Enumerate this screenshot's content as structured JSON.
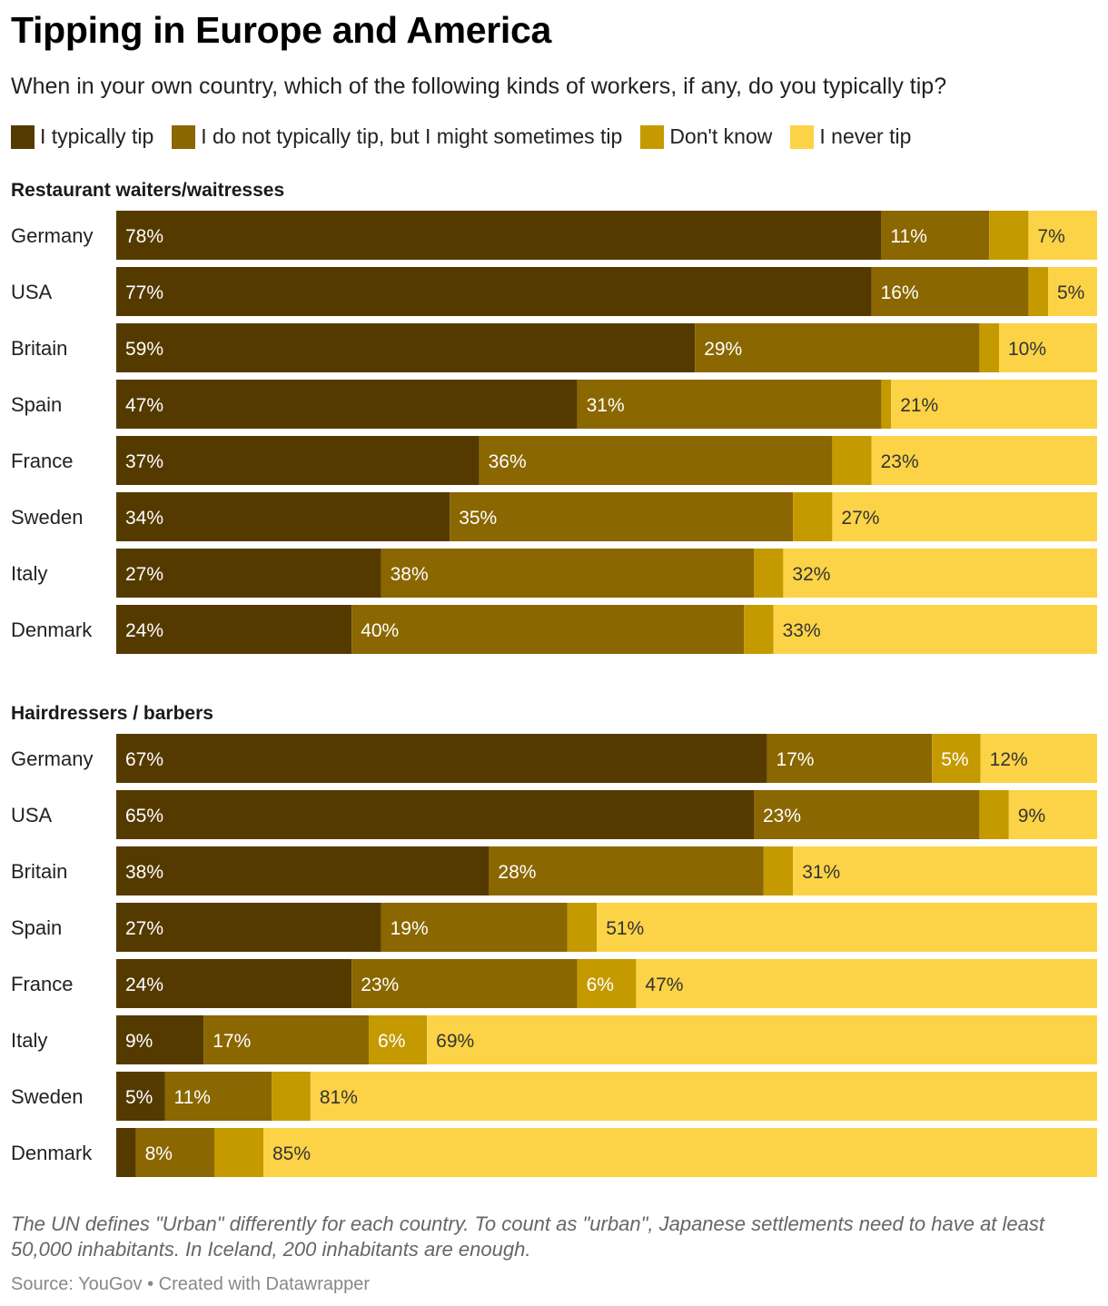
{
  "title": "Tipping in Europe and America",
  "subtitle": "When in your own country, which of the following kinds of workers, if any, do you typically tip?",
  "notes": "The UN defines \"Urban\" differently for each country. To count as \"urban\", Japanese settlements need to have at least 50,000 inhabitants. In Iceland, 200 inhabitants are enough.",
  "source": "Source: YouGov • Created with Datawrapper",
  "colors": {
    "typically_tip": "#553a00",
    "sometimes_tip": "#8a6700",
    "dont_know": "#c49a00",
    "never_tip": "#fcd347"
  },
  "chart_data": {
    "type": "bar",
    "orientation": "horizontal",
    "stacked": true,
    "xlim": [
      0,
      100
    ],
    "legend": [
      "I typically tip",
      "I do not typically tip, but I might sometimes tip",
      "Don't know",
      "I never tip"
    ],
    "panels": [
      {
        "title": "Restaurant waiters/waitresses",
        "categories": [
          "Germany",
          "USA",
          "Britain",
          "Spain",
          "France",
          "Sweden",
          "Italy",
          "Denmark"
        ],
        "series": [
          {
            "name": "I typically tip",
            "values": [
              78,
              77,
              59,
              47,
              37,
              34,
              27,
              24
            ]
          },
          {
            "name": "I do not typically tip, but I might sometimes tip",
            "values": [
              11,
              16,
              29,
              31,
              36,
              35,
              38,
              40
            ]
          },
          {
            "name": "Don't know",
            "values": [
              4,
              2,
              2,
              1,
              4,
              4,
              3,
              3
            ]
          },
          {
            "name": "I never tip",
            "values": [
              7,
              5,
              10,
              21,
              23,
              27,
              32,
              33
            ]
          }
        ],
        "labels": [
          [
            "78%",
            "11%",
            "",
            "7%"
          ],
          [
            "77%",
            "16%",
            "",
            "5%"
          ],
          [
            "59%",
            "29%",
            "",
            "10%"
          ],
          [
            "47%",
            "31%",
            "",
            "21%"
          ],
          [
            "37%",
            "36%",
            "",
            "23%"
          ],
          [
            "34%",
            "35%",
            "",
            "27%"
          ],
          [
            "27%",
            "38%",
            "",
            "32%"
          ],
          [
            "24%",
            "40%",
            "",
            "33%"
          ]
        ]
      },
      {
        "title": "Hairdressers / barbers",
        "categories": [
          "Germany",
          "USA",
          "Britain",
          "Spain",
          "France",
          "Italy",
          "Sweden",
          "Denmark"
        ],
        "series": [
          {
            "name": "I typically tip",
            "values": [
              67,
              65,
              38,
              27,
              24,
              9,
              5,
              2
            ]
          },
          {
            "name": "I do not typically tip, but I might sometimes tip",
            "values": [
              17,
              23,
              28,
              19,
              23,
              17,
              11,
              8
            ]
          },
          {
            "name": "Don't know",
            "values": [
              5,
              3,
              3,
              3,
              6,
              6,
              4,
              5
            ]
          },
          {
            "name": "I never tip",
            "values": [
              12,
              9,
              31,
              51,
              47,
              69,
              81,
              85
            ]
          }
        ],
        "labels": [
          [
            "67%",
            "17%",
            "5%",
            "12%"
          ],
          [
            "65%",
            "23%",
            "",
            "9%"
          ],
          [
            "38%",
            "28%",
            "",
            "31%"
          ],
          [
            "27%",
            "19%",
            "",
            "51%"
          ],
          [
            "24%",
            "23%",
            "6%",
            "47%"
          ],
          [
            "9%",
            "17%",
            "6%",
            "69%"
          ],
          [
            "5%",
            "11%",
            "",
            "81%"
          ],
          [
            "",
            "8%",
            "",
            "85%"
          ]
        ]
      }
    ]
  }
}
